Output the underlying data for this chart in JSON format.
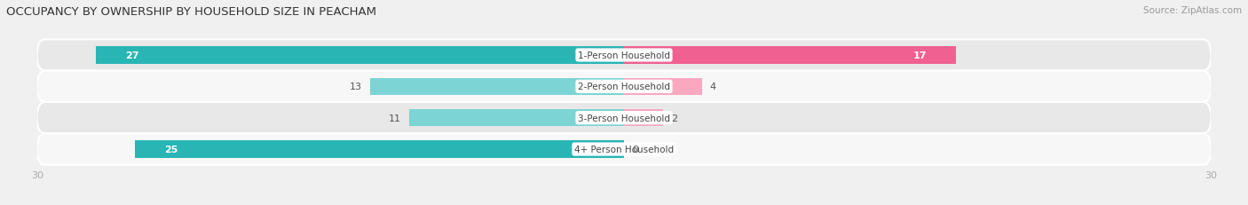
{
  "title": "OCCUPANCY BY OWNERSHIP BY HOUSEHOLD SIZE IN PEACHAM",
  "source": "Source: ZipAtlas.com",
  "categories": [
    "1-Person Household",
    "2-Person Household",
    "3-Person Household",
    "4+ Person Household"
  ],
  "owner_values": [
    27,
    13,
    11,
    25
  ],
  "renter_values": [
    17,
    4,
    2,
    0
  ],
  "owner_color_dark": "#2ab5b5",
  "owner_color_light": "#7dd4d4",
  "renter_color_dark": "#f06090",
  "renter_color_light": "#f9a8c0",
  "axis_max": 30,
  "bar_height": 0.55,
  "bg_color": "#f0f0f0",
  "row_bg_light": "#f7f7f7",
  "row_bg_dark": "#e8e8e8",
  "tick_label_color": "#aaaaaa",
  "title_fontsize": 9.5,
  "source_fontsize": 7.5,
  "bar_label_fontsize": 8,
  "cat_label_fontsize": 7.5,
  "tick_fontsize": 8,
  "legend_fontsize": 8
}
